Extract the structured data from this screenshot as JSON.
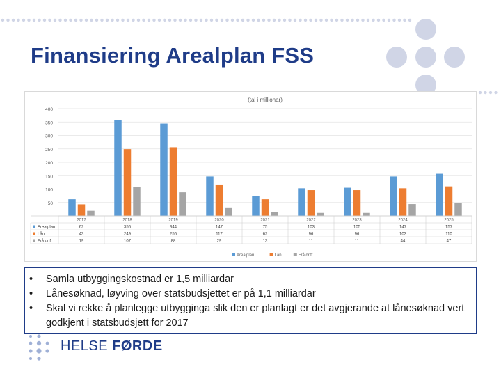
{
  "slide": {
    "title": "Finansiering Arealplan FSS"
  },
  "chart_data": {
    "type": "bar",
    "title": "(tal i millionar)",
    "categories": [
      "2017",
      "2018",
      "2019",
      "2020",
      "2021",
      "2022",
      "2023",
      "2024",
      "2025"
    ],
    "ylim": [
      0,
      400
    ],
    "yticks": [
      0,
      50,
      100,
      150,
      200,
      250,
      300,
      350,
      400
    ],
    "ytick_labels": [
      "-",
      "50",
      "100",
      "150",
      "200",
      "250",
      "300",
      "350",
      "400"
    ],
    "grid": true,
    "legend_position": "bottom",
    "series": [
      {
        "name": "Arealplan",
        "color": "#5b9bd5",
        "values": [
          62,
          356,
          344,
          147,
          75,
          103,
          105,
          147,
          157
        ]
      },
      {
        "name": "Lån",
        "color": "#ed7d31",
        "values": [
          43,
          249,
          256,
          117,
          62,
          96,
          96,
          103,
          110
        ]
      },
      {
        "name": "Frå drift",
        "color": "#a5a5a5",
        "values": [
          19,
          107,
          88,
          29,
          13,
          11,
          11,
          44,
          47
        ]
      }
    ]
  },
  "bullets": [
    "Samla utbyggingskostnad er 1,5 milliardar",
    "Lånesøknad, løyving over statsbudsjettet er på 1,1 milliardar",
    "Skal vi rekke å planlegge utbygginga slik den er planlagt er det avgjerande at lånesøknad vert godkjent i statsbudsjett for 2017"
  ],
  "bullet_symbol": "•",
  "logo": {
    "part1": "HELSE ",
    "part2": "FØRDE"
  },
  "colors": {
    "title": "#1f3c88",
    "decor_dots": "#d0d5e6",
    "logo_dots": "#9fb0d6"
  }
}
